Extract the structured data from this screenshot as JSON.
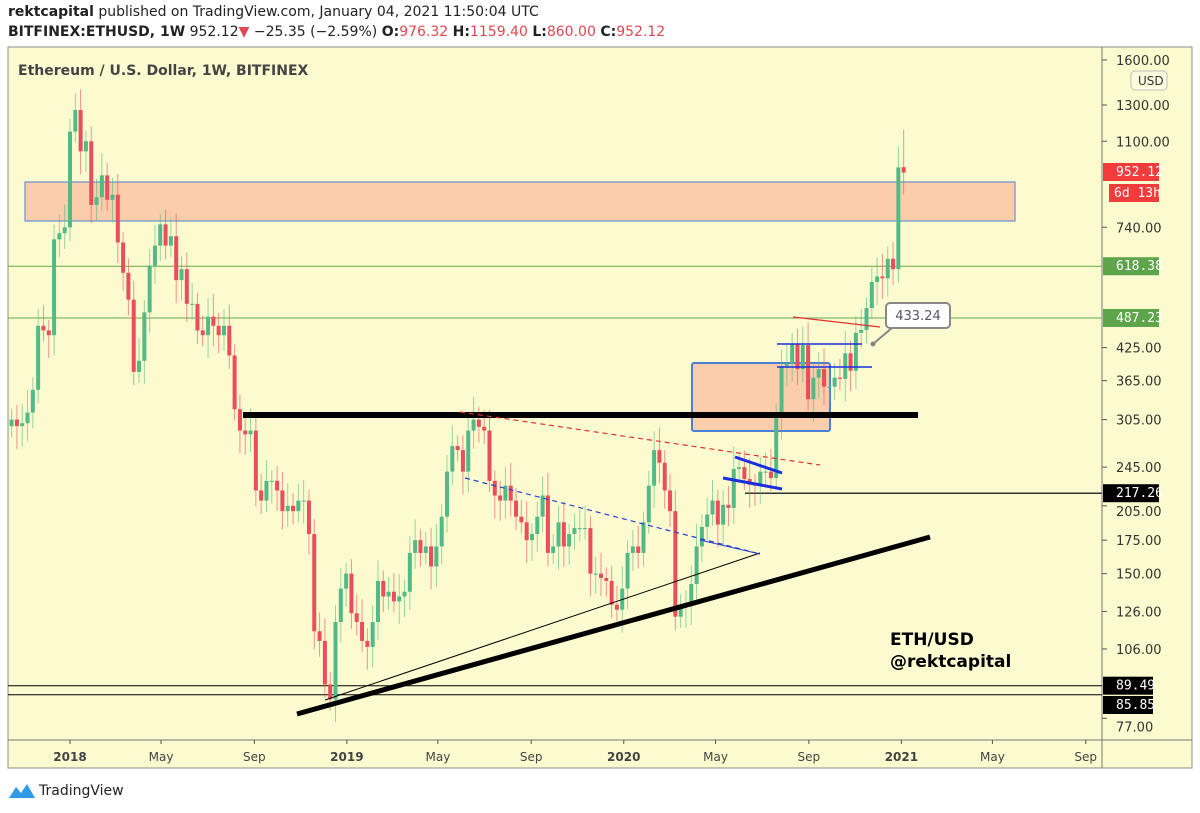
{
  "header": {
    "author": "rektcapital",
    "published": "published on TradingView.com, January 04, 2021 11:50:04 UTC",
    "symbol": "BITFINEX:ETHUSD, 1W",
    "last": "952.12",
    "change": "−25.35 (−2.59%)",
    "o_label": "O:",
    "o": "976.32",
    "h_label": "H:",
    "h": "1159.40",
    "l_label": "L:",
    "l": "860.00",
    "c_label": "C:",
    "c": "952.12"
  },
  "footer": {
    "brand": "TradingView"
  },
  "colors": {
    "background": "#fcfbcf",
    "up": "#53b987",
    "down": "#eb4d5c",
    "zone": "#fbcdaa",
    "zone_border": "#4a7fd6",
    "green_level": "#6aa84f"
  },
  "chart_data": {
    "type": "candlestick",
    "title": "Ethereum / U.S. Dollar, 1W, BITFINEX",
    "currency": "USD",
    "y_scale": "log",
    "ylim": [
      74,
      1650
    ],
    "y_ticks": [
      "1600.00",
      "1300.00",
      "1100.00",
      "740.00",
      "425.00",
      "365.00",
      "305.00",
      "245.00",
      "205.00",
      "175.00",
      "150.00",
      "126.00",
      "106.00",
      "77.00"
    ],
    "y_tick_values": [
      1600,
      1300,
      1100,
      740,
      425,
      365,
      305,
      245,
      205,
      175,
      150,
      126,
      106,
      77
    ],
    "x_ticks": [
      "2018",
      "May",
      "Sep",
      "2019",
      "May",
      "Sep",
      "2020",
      "May",
      "Sep",
      "2021",
      "May",
      "Sep"
    ],
    "x_tick_dates": [
      "2018-01-01",
      "2018-05-01",
      "2018-09-01",
      "2019-01-01",
      "2019-05-01",
      "2019-09-01",
      "2020-01-01",
      "2020-05-01",
      "2020-09-01",
      "2021-01-01",
      "2021-05-01",
      "2021-09-01"
    ],
    "weekly_close_start": "2017-10-16",
    "weekly_close": [
      305,
      296,
      300,
      315,
      350,
      470,
      460,
      450,
      700,
      720,
      740,
      1150,
      1270,
      1050,
      1100,
      820,
      850,
      940,
      840,
      860,
      690,
      600,
      530,
      380,
      400,
      500,
      620,
      680,
      750,
      680,
      710,
      580,
      610,
      520,
      520,
      460,
      450,
      490,
      470,
      450,
      470,
      410,
      320,
      290,
      285,
      290,
      220,
      210,
      230,
      230,
      220,
      200,
      205,
      200,
      210,
      210,
      180,
      115,
      110,
      90,
      84,
      120,
      140,
      150,
      125,
      120,
      110,
      107,
      120,
      145,
      135,
      138,
      132,
      135,
      138,
      165,
      175,
      165,
      170,
      155,
      170,
      195,
      240,
      270,
      265,
      240,
      290,
      305,
      295,
      290,
      230,
      215,
      210,
      225,
      210,
      195,
      190,
      175,
      180,
      195,
      215,
      165,
      170,
      190,
      170,
      180,
      185,
      185,
      185,
      150,
      150,
      147,
      145,
      130,
      127,
      140,
      165,
      170,
      165,
      190,
      225,
      265,
      250,
      220,
      200,
      123,
      130,
      130,
      143,
      170,
      186,
      197,
      210,
      188,
      206,
      203,
      243,
      245,
      232,
      226,
      225,
      240,
      240,
      233,
      310,
      390,
      395,
      433,
      385,
      430,
      335,
      370,
      385,
      355,
      355,
      370,
      368,
      414,
      382,
      455,
      461,
      510,
      575,
      590,
      585,
      640,
      610,
      975,
      952.12
    ],
    "last_candle": {
      "open": 976.32,
      "high": 1159.4,
      "low": 860.0,
      "close": 952.12
    },
    "price_tags": [
      {
        "label": "952.12",
        "value": 952.12,
        "color": "#f23b3b"
      },
      {
        "label": "6d 13h",
        "value": 890,
        "color": "#f23b3b"
      },
      {
        "label": "618.38",
        "value": 618.38,
        "color": "#5ea44a"
      },
      {
        "label": "487.23",
        "value": 487.23,
        "color": "#5ea44a"
      },
      {
        "label": "217.26",
        "value": 217.26,
        "color": "#000000"
      },
      {
        "label": "89.49",
        "value": 89.49,
        "color": "#000000"
      },
      {
        "label": "85.85",
        "value": 85.85,
        "color": "#000000"
      }
    ],
    "callout": "433.24",
    "annotation_lines": [
      "ETH/USD",
      "@rektcapital"
    ]
  }
}
